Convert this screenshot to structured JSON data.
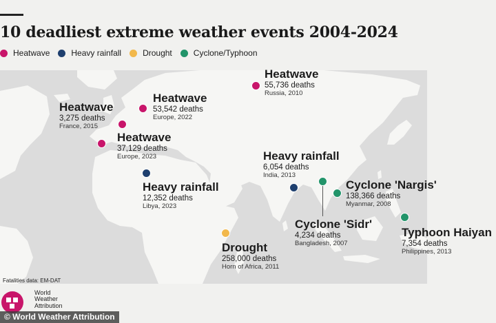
{
  "title": "10 deadliest extreme weather events 2004-2024",
  "legend": [
    {
      "label": "Heatwave",
      "color": "#c8156a"
    },
    {
      "label": "Heavy rainfall",
      "color": "#1e3f6e"
    },
    {
      "label": "Drought",
      "color": "#f2b84b"
    },
    {
      "label": "Cyclone/Typhoon",
      "color": "#22946a"
    }
  ],
  "events": [
    {
      "type": "Heatwave",
      "deaths": "55,736 deaths",
      "place": "Russia, 2010",
      "color": "#c8156a"
    },
    {
      "type": "Heatwave",
      "deaths": "53,542 deaths",
      "place": "Europe, 2022",
      "color": "#c8156a"
    },
    {
      "type": "Heatwave",
      "deaths": "3,275 deaths",
      "place": "France, 2015",
      "color": "#c8156a"
    },
    {
      "type": "Heatwave",
      "deaths": "37,129 deaths",
      "place": "Europe, 2023",
      "color": "#c8156a"
    },
    {
      "type": "Heavy rainfall",
      "deaths": "6,054 deaths",
      "place": "India, 2013",
      "color": "#1e3f6e"
    },
    {
      "type": "Heavy rainfall",
      "deaths": "12,352 deaths",
      "place": "Libya, 2023",
      "color": "#1e3f6e"
    },
    {
      "type": "Cyclone 'Nargis'",
      "deaths": "138,366 deaths",
      "place": "Myanmar, 2008",
      "color": "#22946a"
    },
    {
      "type": "Cyclone 'Sidr'",
      "deaths": "4,234 deaths",
      "place": "Bangladesh, 2007",
      "color": "#22946a"
    },
    {
      "type": "Typhoon Haiyan",
      "deaths": "7,354 deaths",
      "place": "Philippines, 2013",
      "color": "#22946a"
    },
    {
      "type": "Drought",
      "deaths": "258,000 deaths",
      "place": "Horn of Africa, 2011",
      "color": "#f2b84b"
    }
  ],
  "source": "Fatalities data: EM-DAT",
  "org": {
    "line1": "World",
    "line2": "Weather",
    "line3": "Attribution"
  },
  "copyright": "© World Weather Attribution"
}
